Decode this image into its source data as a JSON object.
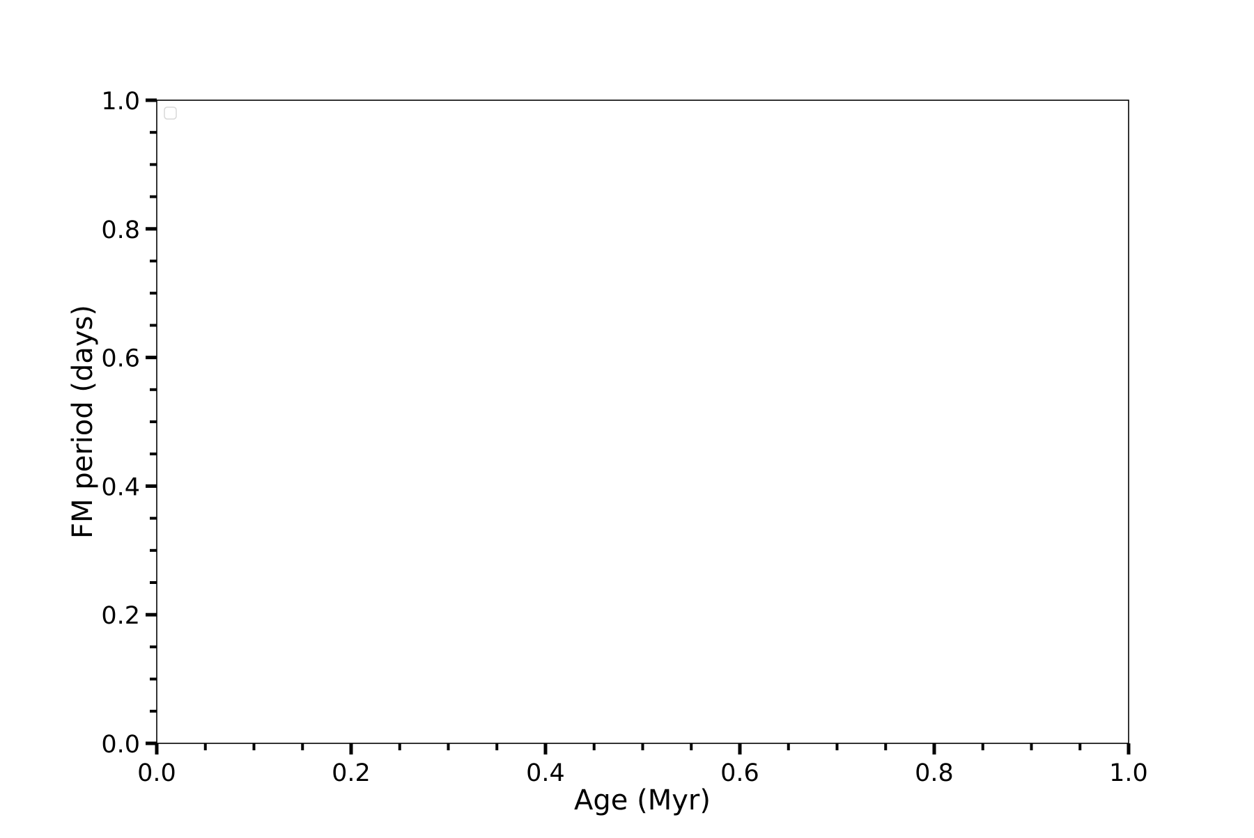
{
  "chart_data": {
    "type": "scatter",
    "title": "",
    "xlabel": "Age (Myr)",
    "ylabel": "FM period (days)",
    "xlim": [
      0.0,
      1.0
    ],
    "ylim": [
      0.0,
      1.0
    ],
    "xticks": [
      "0.0",
      "0.2",
      "0.4",
      "0.6",
      "0.8",
      "1.0"
    ],
    "yticks": [
      "0.0",
      "0.2",
      "0.4",
      "0.6",
      "0.8",
      "1.0"
    ],
    "minor_tick_step": 0.05,
    "grid": false,
    "legend": "upper-left (empty)",
    "series": []
  }
}
